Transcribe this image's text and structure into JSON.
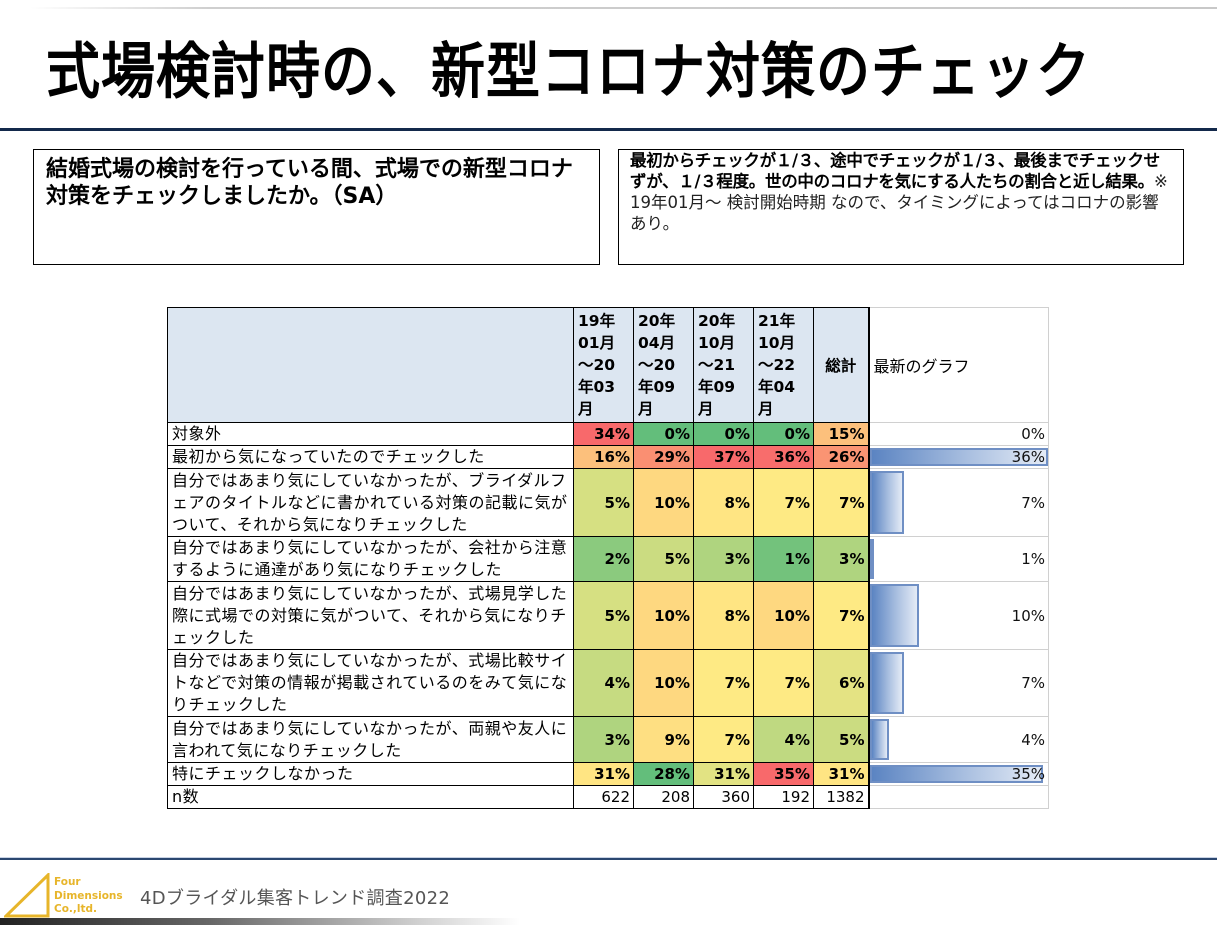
{
  "page": {
    "title": "式場検討時の、新型コロナ対策のチェック"
  },
  "question": {
    "text": "結婚式場の検討を行っている間、式場での新型コロナ対策をチェックしましたか。（SA）"
  },
  "note": {
    "summary": "最初からチェックが１/３、途中でチェックが１/３、最後までチェックせずが、１/３程度。世の中のコロナを気にする人たちの割合と近し結果。",
    "caveat": "※ 19年01月～ 検討開始時期 なので、タイミングによってはコロナの影響あり。"
  },
  "table": {
    "headers": {
      "periods": [
        "19年\n01月\n～20\n年03\n月",
        "20年\n04月\n～20\n年09\n月",
        "20年\n10月\n～21\n年09\n月",
        "21年\n10月\n～22\n年04\n月"
      ],
      "total": "総計",
      "graph": "最新のグラフ"
    },
    "rows": [
      {
        "label": "対象外",
        "values": [
          "34%",
          "0%",
          "0%",
          "0%",
          "15%"
        ],
        "colors": [
          "#f8696b",
          "#63be7b",
          "#63be7b",
          "#63be7b",
          "#fcc07c"
        ],
        "latest": 0,
        "latest_label": "0%"
      },
      {
        "label": "最初から気になっていたのでチェックした",
        "values": [
          "16%",
          "29%",
          "37%",
          "36%",
          "26%"
        ],
        "colors": [
          "#fcc07c",
          "#fa8f72",
          "#f8696b",
          "#f86d6c",
          "#fa9473"
        ],
        "latest": 36,
        "latest_label": "36%"
      },
      {
        "label": "自分ではあまり気にしていなかったが、ブライダルフェアのタイトルなどに書かれている対策の記載に気がついて、それから気になりチェックした",
        "values": [
          "5%",
          "10%",
          "8%",
          "7%",
          "7%"
        ],
        "colors": [
          "#d6e082",
          "#fed880",
          "#ffe583",
          "#feea84",
          "#feea84"
        ],
        "latest": 7,
        "latest_label": "7%"
      },
      {
        "label": "自分ではあまり気にしていなかったが、会社から注意するように通達があり気になりチェックした",
        "values": [
          "2%",
          "5%",
          "3%",
          "1%",
          "3%"
        ],
        "colors": [
          "#8bca7e",
          "#cbdc81",
          "#afd47f",
          "#73c27c",
          "#afd47f"
        ],
        "latest": 1,
        "latest_label": "1%"
      },
      {
        "label": "自分ではあまり気にしていなかったが、式場見学した際に式場での対策に気がついて、それから気になりチェックした",
        "values": [
          "5%",
          "10%",
          "8%",
          "10%",
          "7%"
        ],
        "colors": [
          "#d6e082",
          "#fed880",
          "#ffe583",
          "#fed880",
          "#feea84"
        ],
        "latest": 10,
        "latest_label": "10%"
      },
      {
        "label": "自分ではあまり気にしていなかったが、式場比較サイトなどで対策の情報が掲載されているのをみて気になりチェックした",
        "values": [
          "4%",
          "10%",
          "7%",
          "7%",
          "6%"
        ],
        "colors": [
          "#c6db81",
          "#fed880",
          "#feea84",
          "#feea84",
          "#e4e383"
        ],
        "latest": 7,
        "latest_label": "7%"
      },
      {
        "label": "自分ではあまり気にしていなかったが、両親や友人に言われて気になりチェックした",
        "values": [
          "3%",
          "9%",
          "7%",
          "4%",
          "5%"
        ],
        "colors": [
          "#afd47f",
          "#fedf82",
          "#feea84",
          "#bfd981",
          "#cbdc81"
        ],
        "latest": 4,
        "latest_label": "4%"
      },
      {
        "label": "特にチェックしなかった",
        "values": [
          "31%",
          "28%",
          "31%",
          "35%",
          "31%"
        ],
        "colors": [
          "#ffe583",
          "#63be7b",
          "#e2e383",
          "#f8696b",
          "#ffe583"
        ],
        "latest": 35,
        "latest_label": "35%"
      }
    ],
    "n_row": {
      "label": "n数",
      "values": [
        "622",
        "208",
        "360",
        "192",
        "1382"
      ]
    },
    "bar_max": 36
  },
  "footer": {
    "logo_lines": [
      "Four",
      "Dimensions",
      "Co.,ltd."
    ],
    "title": "4Dブライダル集客トレンド調査2022",
    "logo_color": "#e7b52a"
  }
}
